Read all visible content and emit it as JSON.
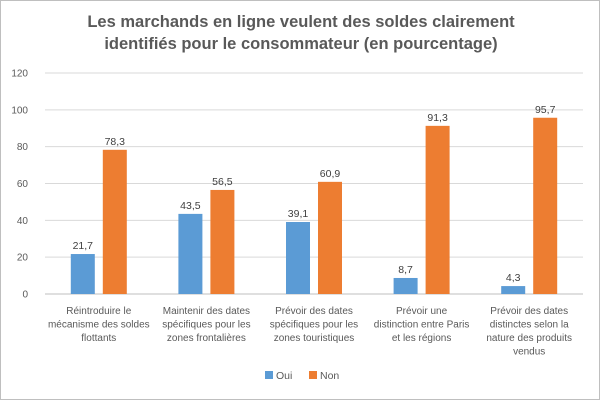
{
  "chart_data": {
    "type": "bar",
    "title_lines": [
      "Les marchands en ligne veulent des soldes clairement",
      "identifiés pour le consommateur (en pourcentage)"
    ],
    "categories": [
      [
        "Réintroduire le",
        "mécanisme des soldes",
        "flottants"
      ],
      [
        "Maintenir des dates",
        "spécifiques pour les",
        "zones frontalières"
      ],
      [
        "Prévoir des dates",
        "spécifiques pour les",
        "zones touristiques"
      ],
      [
        "Prévoir une",
        "distinction entre Paris",
        "et les régions"
      ],
      [
        "Prévoir des dates",
        "distinctes selon la",
        "nature des produits",
        "vendus"
      ]
    ],
    "series": [
      {
        "name": "Oui",
        "color": "#5B9BD5",
        "values": [
          21.7,
          43.5,
          39.1,
          8.7,
          4.3
        ],
        "labels": [
          "21,7",
          "43,5",
          "39,1",
          "8,7",
          "4,3"
        ]
      },
      {
        "name": "Non",
        "color": "#ED7D31",
        "values": [
          78.3,
          56.5,
          60.9,
          91.3,
          95.7
        ],
        "labels": [
          "78,3",
          "56,5",
          "60,9",
          "91,3",
          "95,7"
        ]
      }
    ],
    "ylim": [
      0,
      120
    ],
    "yticks": [
      0,
      20,
      40,
      60,
      80,
      100,
      120
    ],
    "ytick_labels": [
      "0",
      "20",
      "40",
      "60",
      "80",
      "100",
      "120"
    ],
    "grid": true,
    "legend_position": "bottom"
  }
}
